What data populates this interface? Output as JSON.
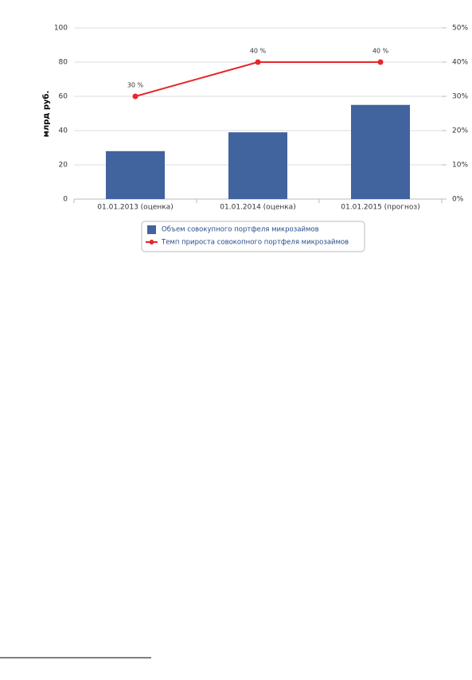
{
  "chart_data": {
    "type": "bar",
    "categories": [
      "01.01.2013 (оценка)",
      "01.01.2014 (оценка)",
      "01.01.2015 (прогноз)"
    ],
    "ylabel": "млрд руб.",
    "ylim": [
      0,
      100
    ],
    "yticks": [
      0,
      20,
      40,
      60,
      80,
      100
    ],
    "y2lim": [
      0,
      50
    ],
    "y2ticks": [
      {
        "value": 0,
        "label": "0%"
      },
      {
        "value": 10,
        "label": "10%"
      },
      {
        "value": 20,
        "label": "20%"
      },
      {
        "value": 30,
        "label": "30%"
      },
      {
        "value": 40,
        "label": "40%"
      },
      {
        "value": 50,
        "label": "50%"
      }
    ],
    "grid": true,
    "legend": "bottom",
    "series": [
      {
        "name": "Объем совокупного портфеля микрозаймов",
        "type": "bar",
        "color": "#41639e",
        "values": [
          28,
          39,
          55
        ]
      },
      {
        "name": "Темп прироста совокопного портфеля микрозаймов",
        "type": "line",
        "axis": "y2",
        "color": "#e8262b",
        "values": [
          30,
          40,
          40
        ],
        "value_labels": [
          "30 %",
          "40 %",
          "40 %"
        ]
      }
    ]
  }
}
